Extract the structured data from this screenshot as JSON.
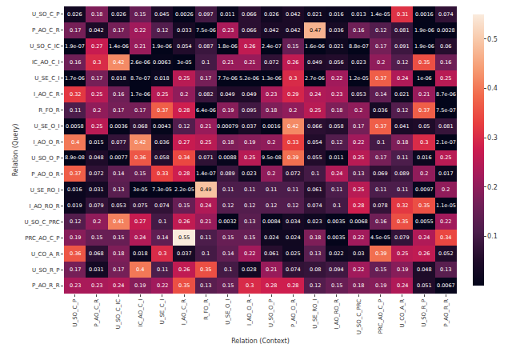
{
  "chart_data": {
    "type": "heatmap",
    "x_label": "Relation (Context)",
    "y_label": "Relation (Query)",
    "x_categories": [
      "U_SO_C_P",
      "P_AO_C_R",
      "U_SO_C_IC",
      "IC_AO_C_I",
      "U_SE_C_I",
      "I_AO_C_R",
      "R_FO_R",
      "U_SE_O_I",
      "I_AO_O_R",
      "U_SO_O_P",
      "P_AO_O_R",
      "U_SE_RO_I",
      "I_AO_RO_R",
      "U_SO_C_PRC",
      "PRC_AO_C_P",
      "U_CO_A_R",
      "U_SO_R_P",
      "P_AO_R_R"
    ],
    "y_categories": [
      "U_SO_C_P",
      "P_AO_C_R",
      "U_SO_C_IC",
      "IC_AO_C_I",
      "U_SE_C_I",
      "I_AO_C_R",
      "R_FO_R",
      "U_SE_O_I",
      "I_AO_O_R",
      "U_SO_O_P",
      "P_AO_O_R",
      "U_SE_RO_I",
      "I_AO_RO_R",
      "U_SO_C_PRC",
      "PRC_AO_C_P",
      "U_CO_A_R",
      "U_SO_R_P",
      "P_AO_R_R"
    ],
    "z": [
      [
        0.026,
        0.18,
        0.026,
        0.15,
        0.045,
        0.0026,
        0.097,
        0.011,
        0.066,
        0.026,
        0.042,
        0.021,
        0.016,
        0.013,
        1.4e-05,
        0.31,
        0.0016,
        0.074
      ],
      [
        0.17,
        0.042,
        0.17,
        0.22,
        0.12,
        0.033,
        7.5e-06,
        0.23,
        0.066,
        0.042,
        0.042,
        0.47,
        0.036,
        0.16,
        0.12,
        0.081,
        1.9e-06,
        0.0028
      ],
      [
        1.9e-07,
        0.27,
        1.4e-06,
        0.21,
        1.9e-06,
        0.054,
        0.087,
        1.8e-06,
        0.26,
        2.4e-07,
        0.15,
        1.6e-06,
        0.021,
        8.8e-07,
        0.17,
        0.091,
        1.9e-06,
        0.06
      ],
      [
        0.16,
        0.3,
        0.42,
        2.6e-06,
        0.0063,
        3e-05,
        0.1,
        0.21,
        0.21,
        0.072,
        0.26,
        0.049,
        0.056,
        0.023,
        0.2,
        0.12,
        0.35,
        0.16
      ],
      [
        1.7e-06,
        0.17,
        0.018,
        8.7e-07,
        0.018,
        0.25,
        0.17,
        7.7e-06,
        5.2e-06,
        1.3e-06,
        0.3,
        2.7e-06,
        0.22,
        1.2e-05,
        0.37,
        0.24,
        1e-06,
        0.25
      ],
      [
        0.32,
        0.25,
        0.16,
        1.7e-06,
        0.25,
        0.2,
        0.082,
        0.049,
        0.049,
        0.23,
        0.29,
        0.24,
        0.23,
        0.053,
        0.14,
        0.021,
        0.21,
        8.7e-06
      ],
      [
        0.11,
        0.2,
        0.17,
        0.17,
        0.37,
        0.28,
        6.4e-06,
        0.19,
        0.095,
        0.18,
        0.2,
        0.25,
        0.18,
        0.2,
        0.036,
        0.12,
        0.37,
        7.5e-07
      ],
      [
        0.0058,
        0.25,
        0.0036,
        0.068,
        0.0043,
        0.12,
        0.21,
        0.00079,
        0.037,
        0.0016,
        0.42,
        0.066,
        0.058,
        0.17,
        0.37,
        0.041,
        0.05,
        0.081
      ],
      [
        0.4,
        0.015,
        0.077,
        0.42,
        0.036,
        0.27,
        0.25,
        0.18,
        0.19,
        0.2,
        0.33,
        0.054,
        0.12,
        0.22,
        0.1,
        0.18,
        0.3,
        2.1e-07
      ],
      [
        8.9e-08,
        0.048,
        0.0077,
        0.36,
        0.058,
        0.34,
        0.071,
        0.0088,
        0.25,
        9.5e-08,
        0.39,
        0.055,
        0.011,
        0.25,
        0.17,
        0.11,
        0.016,
        0.25
      ],
      [
        0.37,
        0.072,
        0.14,
        0.15,
        0.33,
        0.28,
        1.4e-07,
        0.089,
        0.023,
        0.2,
        0.072,
        0.1,
        0.24,
        0.13,
        0.069,
        0.089,
        0.2,
        0.017
      ],
      [
        0.016,
        0.031,
        0.13,
        3e-05,
        7.3e-05,
        2.2e-05,
        0.49,
        0.11,
        0.11,
        0.11,
        0.11,
        0.061,
        0.11,
        0.25,
        0.11,
        0.11,
        0.0097,
        0.2
      ],
      [
        0.019,
        0.079,
        0.053,
        0.075,
        0.074,
        0.15,
        0.24,
        0.12,
        0.12,
        0.12,
        0.12,
        0.074,
        0.1,
        0.28,
        0.078,
        0.32,
        0.35,
        1.1e-05
      ],
      [
        0.12,
        0.2,
        0.41,
        0.27,
        0.1,
        0.26,
        0.21,
        0.0032,
        0.13,
        0.0084,
        0.034,
        0.023,
        0.0035,
        0.0068,
        0.16,
        0.35,
        0.0055,
        0.22
      ],
      [
        0.19,
        0.15,
        0.15,
        0.24,
        0.14,
        0.55,
        0.11,
        0.15,
        0.15,
        0.024,
        0.024,
        0.18,
        0.0035,
        0.22,
        4.5e-05,
        0.079,
        0.24,
        0.34
      ],
      [
        0.36,
        0.068,
        0.18,
        0.018,
        0.3,
        0.037,
        0.1,
        0.14,
        0.22,
        0.061,
        0.025,
        0.13,
        0.022,
        0.03,
        0.39,
        0.25,
        0.26,
        0.052
      ],
      [
        0.17,
        0.031,
        0.17,
        0.4,
        0.11,
        0.26,
        0.35,
        0.1,
        0.028,
        0.21,
        0.074,
        0.08,
        0.094,
        0.22,
        0.15,
        0.19,
        0.048,
        0.13
      ],
      [
        0.23,
        0.23,
        0.24,
        0.19,
        0.22,
        0.35,
        0.13,
        0.15,
        0.3,
        0.28,
        0.28,
        0.12,
        0.15,
        0.18,
        0.19,
        0.24,
        0.051,
        0.0067
      ]
    ],
    "value_labels": [
      [
        "0.026",
        "0.18",
        "0.026",
        "0.15",
        "0.045",
        "0.0026",
        "0.097",
        "0.011",
        "0.066",
        "0.026",
        "0.042",
        "0.021",
        "0.016",
        "0.013",
        "1.4e-05",
        "0.31",
        "0.0016",
        "0.074"
      ],
      [
        "0.17",
        "0.042",
        "0.17",
        "0.22",
        "0.12",
        "0.033",
        "7.5e-06",
        "0.23",
        "0.066",
        "0.042",
        "0.042",
        "0.47",
        "0.036",
        "0.16",
        "0.12",
        "0.081",
        "1.9e-06",
        "0.0028"
      ],
      [
        "1.9e-07",
        "0.27",
        "1.4e-06",
        "0.21",
        "1.9e-06",
        "0.054",
        "0.087",
        "1.8e-06",
        "0.26",
        "2.4e-07",
        "0.15",
        "1.6e-06",
        "0.021",
        "8.8e-07",
        "0.17",
        "0.091",
        "1.9e-06",
        "0.06"
      ],
      [
        "0.16",
        "0.3",
        "0.42",
        "2.6e-06",
        "0.0063",
        "3e-05",
        "0.1",
        "0.21",
        "0.21",
        "0.072",
        "0.26",
        "0.049",
        "0.056",
        "0.023",
        "0.2",
        "0.12",
        "0.35",
        "0.16"
      ],
      [
        "1.7e-06",
        "0.17",
        "0.018",
        "8.7e-07",
        "0.018",
        "0.25",
        "0.17",
        "7.7e-06",
        "5.2e-06",
        "1.3e-06",
        "0.3",
        "2.7e-06",
        "0.22",
        "1.2e-05",
        "0.37",
        "0.24",
        "1e-06",
        "0.25"
      ],
      [
        "0.32",
        "0.25",
        "0.16",
        "1.7e-06",
        "0.25",
        "0.2",
        "0.082",
        "0.049",
        "0.049",
        "0.23",
        "0.29",
        "0.24",
        "0.23",
        "0.053",
        "0.14",
        "0.021",
        "0.21",
        "8.7e-06"
      ],
      [
        "0.11",
        "0.2",
        "0.17",
        "0.17",
        "0.37",
        "0.28",
        "6.4e-06",
        "0.19",
        "0.095",
        "0.18",
        "0.2",
        "0.25",
        "0.18",
        "0.2",
        "0.036",
        "0.12",
        "0.37",
        "7.5e-07"
      ],
      [
        "0.0058",
        "0.25",
        "0.0036",
        "0.068",
        "0.0043",
        "0.12",
        "0.21",
        "0.00079",
        "0.037",
        "0.0016",
        "0.42",
        "0.066",
        "0.058",
        "0.17",
        "0.37",
        "0.041",
        "0.05",
        "0.081"
      ],
      [
        "0.4",
        "0.015",
        "0.077",
        "0.42",
        "0.036",
        "0.27",
        "0.25",
        "0.18",
        "0.19",
        "0.2",
        "0.33",
        "0.054",
        "0.12",
        "0.22",
        "0.1",
        "0.18",
        "0.3",
        "2.1e-07"
      ],
      [
        "8.9e-08",
        "0.048",
        "0.0077",
        "0.36",
        "0.058",
        "0.34",
        "0.071",
        "0.0088",
        "0.25",
        "9.5e-08",
        "0.39",
        "0.055",
        "0.011",
        "0.25",
        "0.17",
        "0.11",
        "0.016",
        "0.25"
      ],
      [
        "0.37",
        "0.072",
        "0.14",
        "0.15",
        "0.33",
        "0.28",
        "1.4e-07",
        "0.089",
        "0.023",
        "0.2",
        "0.072",
        "0.1",
        "0.24",
        "0.13",
        "0.069",
        "0.089",
        "0.2",
        "0.017"
      ],
      [
        "0.016",
        "0.031",
        "0.13",
        "3e-05",
        "7.3e-05",
        "2.2e-05",
        "0.49",
        "0.11",
        "0.11",
        "0.11",
        "0.11",
        "0.061",
        "0.11",
        "0.25",
        "0.11",
        "0.11",
        "0.0097",
        "0.2"
      ],
      [
        "0.019",
        "0.079",
        "0.053",
        "0.075",
        "0.074",
        "0.15",
        "0.24",
        "0.12",
        "0.12",
        "0.12",
        "0.12",
        "0.074",
        "0.1",
        "0.28",
        "0.078",
        "0.32",
        "0.35",
        "1.1e-05"
      ],
      [
        "0.12",
        "0.2",
        "0.41",
        "0.27",
        "0.1",
        "0.26",
        "0.21",
        "0.0032",
        "0.13",
        "0.0084",
        "0.034",
        "0.023",
        "0.0035",
        "0.0068",
        "0.16",
        "0.35",
        "0.0055",
        "0.22"
      ],
      [
        "0.19",
        "0.15",
        "0.15",
        "0.24",
        "0.14",
        "0.55",
        "0.11",
        "0.15",
        "0.15",
        "0.024",
        "0.024",
        "0.18",
        "0.0035",
        "0.22",
        "4.5e-05",
        "0.079",
        "0.24",
        "0.34"
      ],
      [
        "0.36",
        "0.068",
        "0.18",
        "0.018",
        "0.3",
        "0.037",
        "0.1",
        "0.14",
        "0.22",
        "0.061",
        "0.025",
        "0.13",
        "0.022",
        "0.03",
        "0.39",
        "0.25",
        "0.26",
        "0.052"
      ],
      [
        "0.17",
        "0.031",
        "0.17",
        "0.4",
        "0.11",
        "0.26",
        "0.35",
        "0.1",
        "0.028",
        "0.21",
        "0.074",
        "0.08",
        "0.094",
        "0.22",
        "0.15",
        "0.19",
        "0.048",
        "0.13"
      ],
      [
        "0.23",
        "0.23",
        "0.24",
        "0.19",
        "0.22",
        "0.35",
        "0.13",
        "0.15",
        "0.3",
        "0.28",
        "0.28",
        "0.12",
        "0.15",
        "0.18",
        "0.19",
        "0.24",
        "0.051",
        "0.0067"
      ]
    ],
    "colorbar": {
      "range": [
        0,
        0.55
      ],
      "ticks": [
        0.1,
        0.2,
        0.3,
        0.4,
        0.5
      ]
    },
    "data_labels": true,
    "grid": false
  }
}
